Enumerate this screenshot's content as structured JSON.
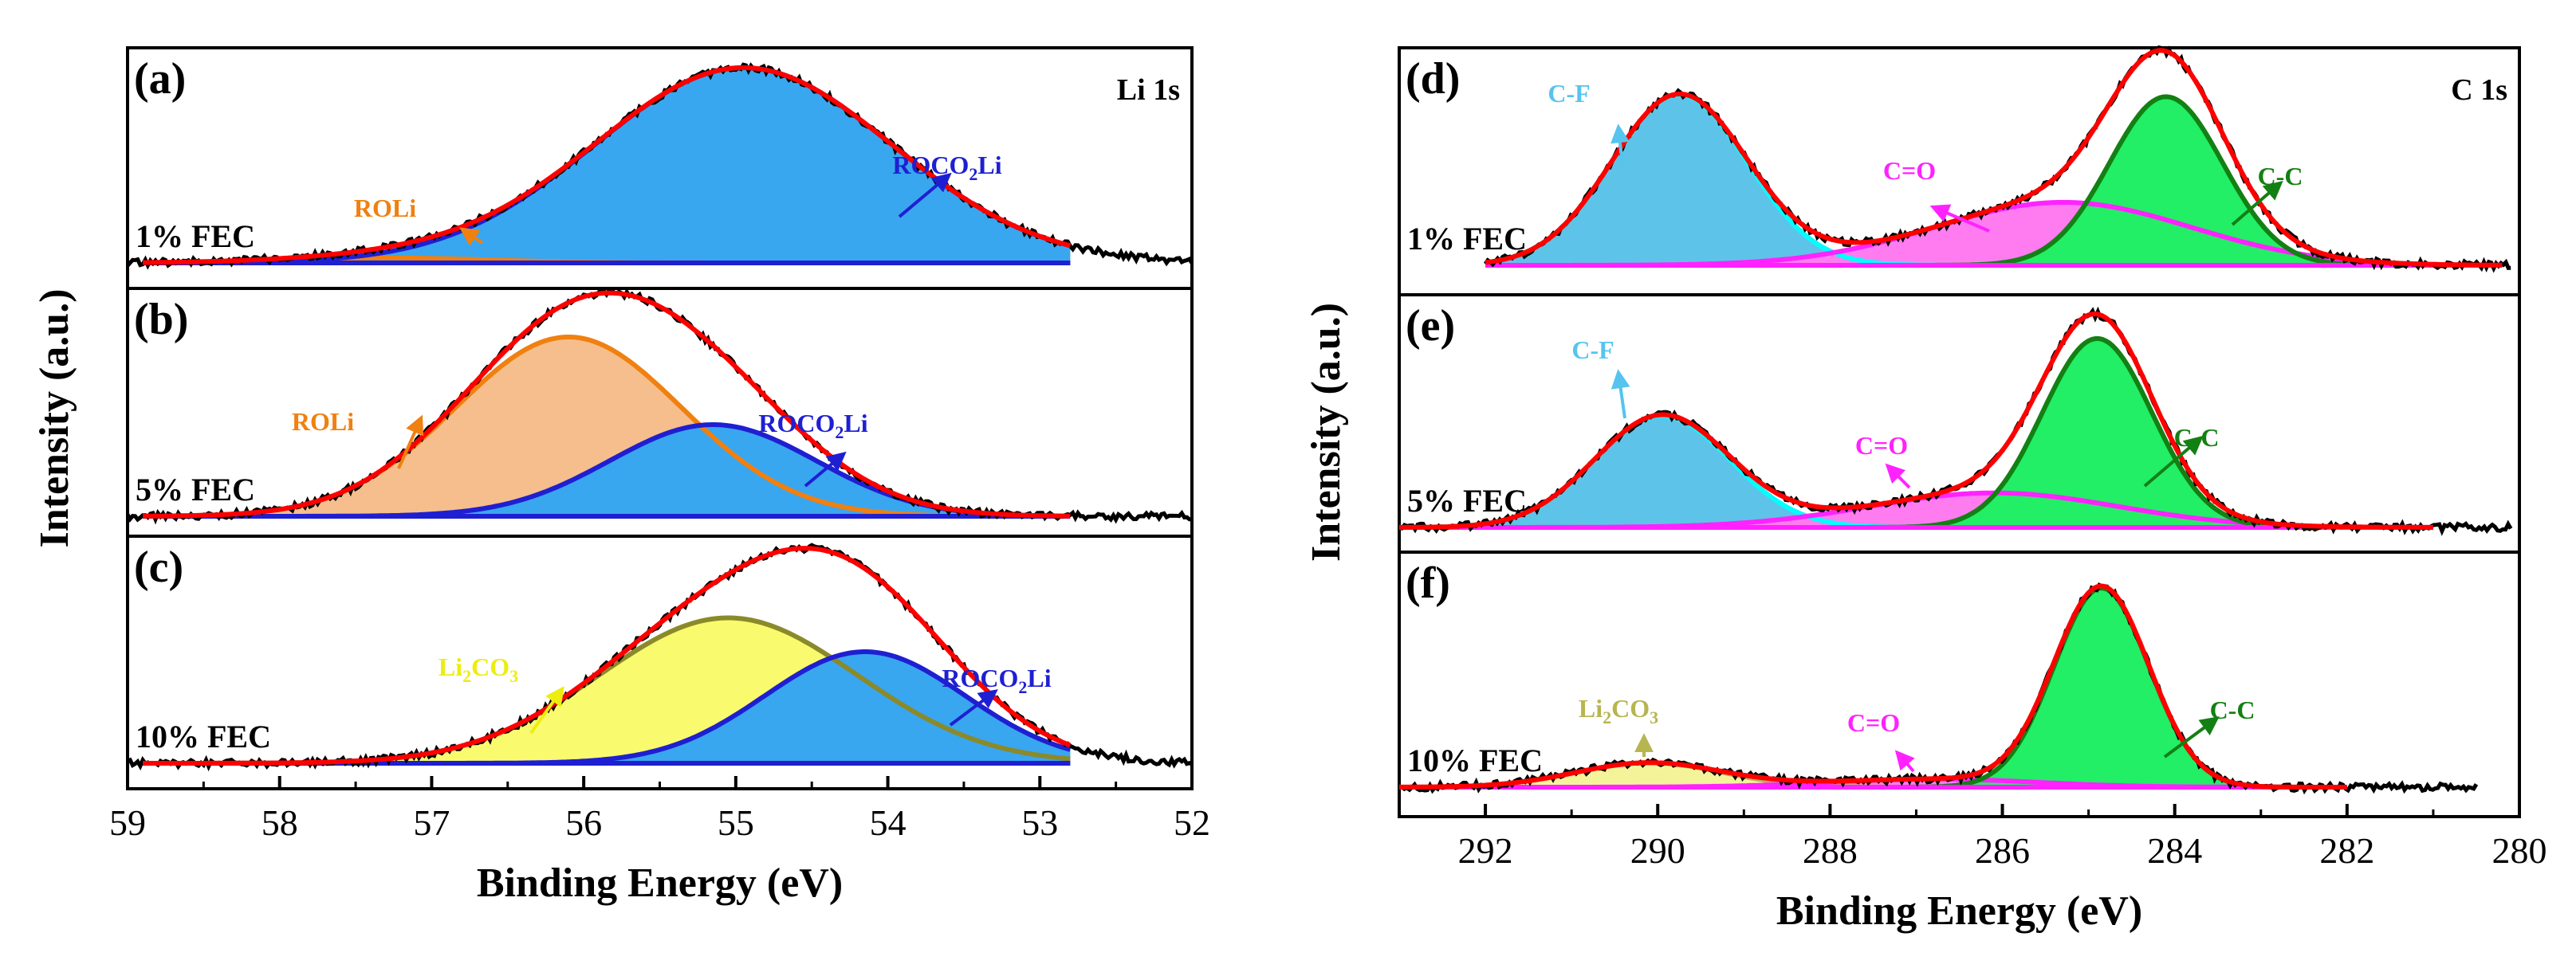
{
  "figure": {
    "colors": {
      "raw": "#000000",
      "envelope": "#ff0000",
      "baseline_li": "#1f1fd2",
      "baseline_c": "#ff22ff"
    }
  },
  "chart_data": [
    {
      "type": "area",
      "region": "Li 1s",
      "xlabel": "Binding Energy (eV)",
      "ylabel": "Intensity (a.u.)",
      "xlim": [
        59,
        52
      ],
      "x_reversed": true,
      "xticks": [
        "59",
        "58",
        "57",
        "56",
        "55",
        "54",
        "53",
        "52"
      ],
      "panels": [
        {
          "label": "(a)",
          "sample": "1% FEC",
          "region_label": "Li 1s",
          "range": [
            58.9,
            52.8
          ],
          "raw_range": [
            59,
            52
          ],
          "peak_max": 1.0,
          "components": [
            {
              "name": "ROLi",
              "sub": "",
              "tail": "",
              "center": 57.3,
              "fwhm": 1.6,
              "height": 0.025,
              "fill": "#f0a050",
              "stroke": "#f08010",
              "text_color": "#f08010"
            },
            {
              "name": "ROCO",
              "sub": "2",
              "tail": "Li",
              "center": 54.95,
              "fwhm": 2.3,
              "height": 0.98,
              "fill": "#39a6f0",
              "stroke": "#1f1fd2",
              "text_color": "#1f1fd2"
            }
          ]
        },
        {
          "label": "(b)",
          "sample": "5% FEC",
          "region_label": "",
          "range": [
            58.9,
            52.8
          ],
          "raw_range": [
            59,
            52
          ],
          "peak_max": 1.0,
          "components": [
            {
              "name": "ROLi",
              "sub": "",
              "tail": "",
              "center": 56.1,
              "fwhm": 1.75,
              "height": 0.9,
              "fill": "#f5be8c",
              "stroke": "#f08010",
              "text_color": "#f08010"
            },
            {
              "name": "ROCO",
              "sub": "2",
              "tail": "Li",
              "center": 55.15,
              "fwhm": 1.6,
              "height": 0.46,
              "fill": "#39a6f0",
              "stroke": "#1f1fd2",
              "text_color": "#1f1fd2"
            }
          ]
        },
        {
          "label": "(c)",
          "sample": "10% FEC",
          "region_label": "",
          "range": [
            58.9,
            52.8
          ],
          "raw_range": [
            59,
            52
          ],
          "peak_max": 1.0,
          "components": [
            {
              "name": "Li",
              "sub": "2",
              "tail": "CO",
              "sub2": "3",
              "center": 55.05,
              "fwhm": 2.0,
              "height": 0.73,
              "fill": "#fafa6e",
              "stroke": "#8a8a2a",
              "text_color": "#eded10"
            },
            {
              "name": "ROCO",
              "sub": "2",
              "tail": "Li",
              "center": 54.15,
              "fwhm": 1.55,
              "height": 0.56,
              "fill": "#39a6f0",
              "stroke": "#1f1fd2",
              "text_color": "#1f1fd2"
            }
          ]
        }
      ]
    },
    {
      "type": "area",
      "region": "C 1s",
      "xlabel": "Binding Energy (eV)",
      "ylabel": "Intensity (a.u.)",
      "xlim": [
        293,
        280
      ],
      "x_reversed": true,
      "xticks": [
        "292",
        "290",
        "288",
        "286",
        "284",
        "282",
        "280"
      ],
      "panels": [
        {
          "label": "(d)",
          "sample": "1% FEC",
          "region_label": "C 1s",
          "range": [
            292,
            280.2
          ],
          "raw_range": [
            292,
            280.1
          ],
          "peak_max": 1.0,
          "components": [
            {
              "name": "C-F",
              "sub": "",
              "tail": "",
              "center": 289.75,
              "fwhm": 1.85,
              "height": 0.84,
              "fill": "#5ec3e8",
              "stroke": "#00ffff",
              "text_color": "#55c4ee"
            },
            {
              "name": "C=O",
              "sub": "",
              "tail": "",
              "center": 285.3,
              "fwhm": 3.5,
              "height": 0.31,
              "fill": "#ff7cf0",
              "stroke": "#ff22ff",
              "text_color": "#ff22ff"
            },
            {
              "name": "C-C",
              "sub": "",
              "tail": "",
              "center": 284.1,
              "fwhm": 1.55,
              "height": 0.83,
              "fill": "#22ee66",
              "stroke": "#138013",
              "text_color": "#138013"
            }
          ]
        },
        {
          "label": "(e)",
          "sample": "5% FEC",
          "region_label": "",
          "range": [
            293,
            281.0
          ],
          "raw_range": [
            293,
            280.1
          ],
          "peak_max": 1.0,
          "components": [
            {
              "name": "C-F",
              "sub": "",
              "tail": "",
              "center": 289.95,
              "fwhm": 1.85,
              "height": 0.55,
              "fill": "#5ec3e8",
              "stroke": "#00ffff",
              "text_color": "#55c4ee"
            },
            {
              "name": "C=O",
              "sub": "",
              "tail": "",
              "center": 286.1,
              "fwhm": 3.4,
              "height": 0.17,
              "fill": "#ff7cf0",
              "stroke": "#ff22ff",
              "text_color": "#ff22ff"
            },
            {
              "name": "C-C",
              "sub": "",
              "tail": "",
              "center": 284.9,
              "fwhm": 1.5,
              "height": 0.93,
              "fill": "#22ee66",
              "stroke": "#138013",
              "text_color": "#138013"
            }
          ]
        },
        {
          "label": "(f)",
          "sample": "10% FEC",
          "region_label": "",
          "range": [
            293,
            282.0
          ],
          "raw_range": [
            293,
            280.5
          ],
          "peak_max": 1.0,
          "components": [
            {
              "name": "Li",
              "sub": "2",
              "tail": "CO",
              "sub2": "3",
              "center": 290.1,
              "fwhm": 2.0,
              "height": 0.12,
              "fill": "#f5f39a",
              "stroke": "#b7b550",
              "text_color": "#b7b550"
            },
            {
              "name": "C=O",
              "sub": "",
              "tail": "",
              "center": 286.8,
              "fwhm": 2.8,
              "height": 0.04,
              "fill": "#ff7cf0",
              "stroke": "#ff22ff",
              "text_color": "#ff22ff"
            },
            {
              "name": "C-C",
              "sub": "",
              "tail": "",
              "center": 284.85,
              "fwhm": 1.3,
              "height": 0.98,
              "fill": "#22ee66",
              "stroke": "#138013",
              "text_color": "#138013"
            }
          ]
        }
      ]
    }
  ]
}
